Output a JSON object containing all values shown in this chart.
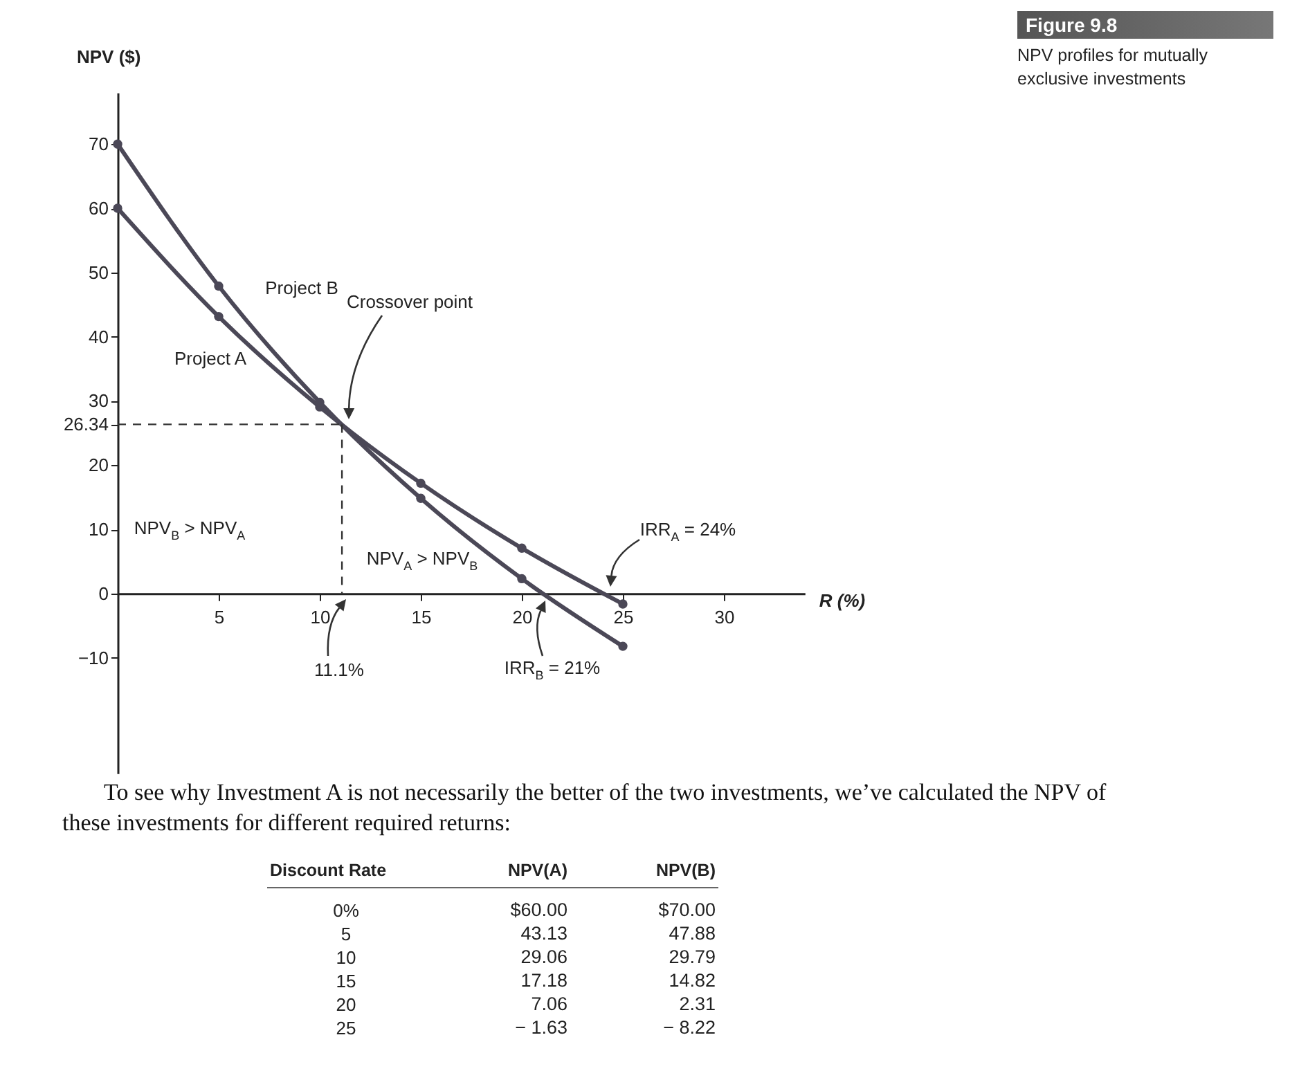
{
  "chart_data": {
    "type": "line",
    "title": "Figure 9.8",
    "subtitle": "NPV profiles for mutually exclusive investments",
    "xlabel": "R (%)",
    "ylabel": "NPV ($)",
    "x": [
      0,
      5,
      10,
      15,
      20,
      25
    ],
    "series": [
      {
        "name": "Project A",
        "color": "#4b4857",
        "values": [
          60,
          43.13,
          29.06,
          17.18,
          7.06,
          -1.63
        ]
      },
      {
        "name": "Project B",
        "color": "#4b4857",
        "values": [
          70,
          47.88,
          29.79,
          14.82,
          2.31,
          -8.22
        ]
      }
    ],
    "xlim": [
      0,
      34
    ],
    "ylim": [
      -28,
      78
    ],
    "xticks": [
      5,
      10,
      15,
      20,
      25,
      30
    ],
    "yticks": [
      -10,
      0,
      10,
      20,
      26.34,
      30,
      40,
      50,
      60,
      70
    ],
    "ref_lines": [
      {
        "axis": "y",
        "value": 26.34,
        "line_style": "dashed"
      },
      {
        "axis": "x",
        "value": 11.1,
        "line_style": "dashed"
      }
    ],
    "annotations": [
      "Crossover point",
      "NPV$_{B}$ > NPV$_{A}$",
      "NPV$_{A}$ > NPV$_{B}$",
      "IRR$_{A}$ = 24%",
      "IRR$_{B}$ = 21%",
      "To see why Investment A is not necessarily the better of the two investments, we’ve calculated the NPV of these investments for different required returns:",
      "Discount Rate",
      "NPV(A)",
      "NPV(B)",
      "0%",
      "5",
      "10",
      "15",
      "20",
      "25",
      "$60.00",
      "43.13",
      "29.06",
      "17.18",
      "7.06",
      "− 1.63",
      "$70.00",
      "47.88",
      "29.79",
      "14.82",
      "2.31",
      "− 8.22",
      "11.1%"
    ],
    "marker": "circle",
    "line_style": "solid",
    "grid": false
  }
}
